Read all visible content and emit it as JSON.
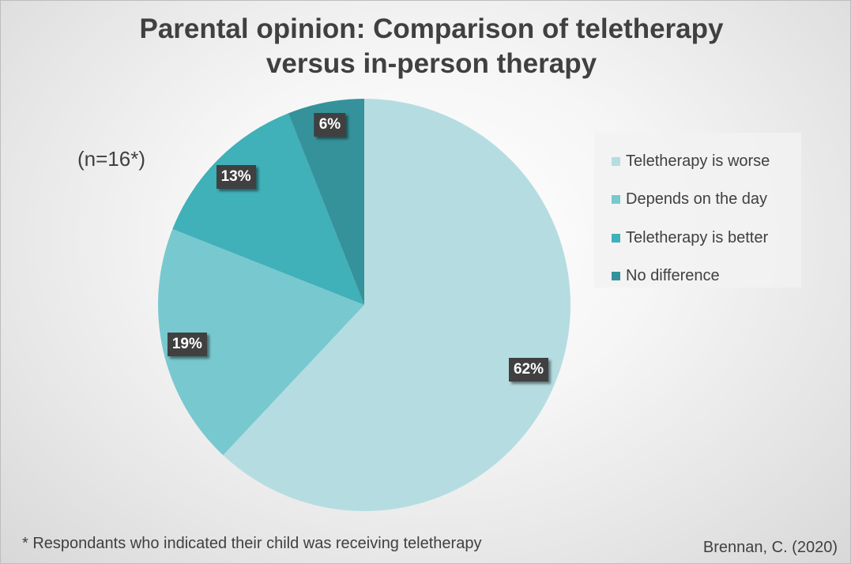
{
  "chart_data": {
    "type": "pie",
    "title": {
      "line1": "Parental opinion: Comparison of teletherapy",
      "line2": "versus in-person therapy"
    },
    "categories": [
      "Teletherapy is worse",
      "Depends on the day",
      "Teletherapy is better",
      "No difference"
    ],
    "values": [
      62,
      19,
      13,
      6
    ],
    "value_unit": "%",
    "data_labels": [
      "62%",
      "19%",
      "13%",
      "6%"
    ],
    "colors": [
      "#b5dde1",
      "#78c8cf",
      "#40b0b9",
      "#35929b"
    ],
    "legend_position": "right",
    "start_angle": "12 o'clock",
    "direction": "clockwise"
  },
  "annotations": {
    "sample_size": "(n=16*)",
    "footnote": "* Respondants who indicated their child was receiving teletherapy",
    "source": "Brennan, C. (2020)"
  },
  "legend": {
    "items": [
      {
        "label": "Teletherapy is worse",
        "color": "#b5dde1"
      },
      {
        "label": "Depends on the day",
        "color": "#78c8cf"
      },
      {
        "label": "Teletherapy is better",
        "color": "#40b0b9"
      },
      {
        "label": "No difference",
        "color": "#35929b"
      }
    ]
  }
}
